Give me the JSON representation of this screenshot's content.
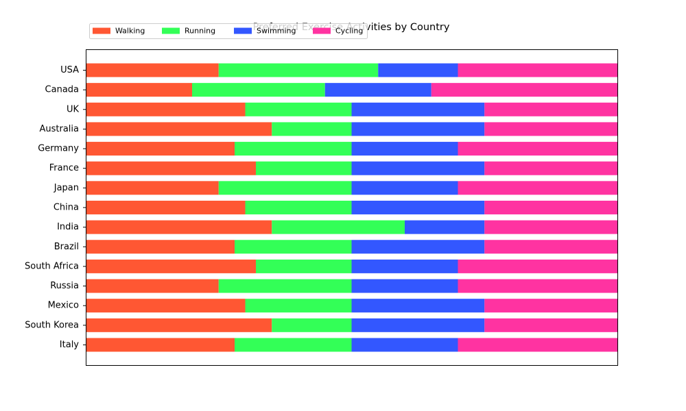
{
  "chart_data": {
    "type": "bar",
    "orientation": "horizontal",
    "stacked": true,
    "normalized": true,
    "title": "Preferred Exercise Activities by Country",
    "xlabel": "",
    "ylabel": "",
    "xlim": [
      0,
      100
    ],
    "x_ticks_visible": false,
    "grid": false,
    "legend_position": "top-left, above plot, single row",
    "categories": [
      "USA",
      "Canada",
      "UK",
      "Australia",
      "Germany",
      "France",
      "Japan",
      "China",
      "India",
      "Brazil",
      "South Africa",
      "Russia",
      "Mexico",
      "South Korea",
      "Italy"
    ],
    "series": [
      {
        "name": "Walking",
        "color": "#FF5733",
        "values": [
          25,
          20,
          30,
          35,
          28,
          32,
          25,
          30,
          35,
          28,
          32,
          25,
          30,
          35,
          28
        ]
      },
      {
        "name": "Running",
        "color": "#33FF57",
        "values": [
          30,
          25,
          20,
          15,
          22,
          18,
          25,
          20,
          25,
          22,
          18,
          25,
          20,
          15,
          22
        ]
      },
      {
        "name": "Swimming",
        "color": "#3357FF",
        "values": [
          15,
          20,
          25,
          25,
          20,
          25,
          20,
          25,
          15,
          25,
          20,
          20,
          25,
          25,
          20
        ]
      },
      {
        "name": "Cycling",
        "color": "#FF33A1",
        "values": [
          30,
          35,
          25,
          25,
          30,
          25,
          30,
          25,
          25,
          25,
          30,
          30,
          25,
          25,
          30
        ]
      }
    ]
  }
}
